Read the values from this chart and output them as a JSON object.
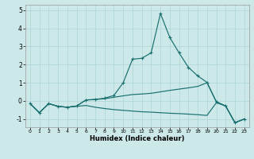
{
  "xlabel": "Humidex (Indice chaleur)",
  "bg_color": "#cce8e8",
  "line_color": "#1a7070",
  "grid_color": "#aad4d4",
  "xlim": [
    -0.5,
    23.5
  ],
  "ylim": [
    -1.45,
    5.3
  ],
  "xticks": [
    0,
    1,
    2,
    3,
    4,
    5,
    6,
    7,
    8,
    9,
    10,
    11,
    12,
    13,
    14,
    15,
    16,
    17,
    18,
    19,
    20,
    21,
    22,
    23
  ],
  "yticks": [
    -1,
    0,
    1,
    2,
    3,
    4,
    5
  ],
  "series": [
    {
      "x": [
        0,
        1,
        2,
        3,
        4,
        5,
        6,
        7,
        8,
        9,
        10,
        11,
        12,
        13,
        14,
        15,
        16,
        17,
        18,
        19,
        20,
        21,
        22,
        23
      ],
      "y": [
        -0.15,
        -0.65,
        -0.15,
        -0.3,
        -0.35,
        -0.3,
        -0.25,
        -0.35,
        -0.42,
        -0.48,
        -0.52,
        -0.56,
        -0.6,
        -0.62,
        -0.65,
        -0.68,
        -0.7,
        -0.73,
        -0.76,
        -0.8,
        -0.1,
        -0.28,
        -1.2,
        -1.0
      ],
      "marker": false,
      "lw": 0.85
    },
    {
      "x": [
        0,
        1,
        2,
        3,
        4,
        5,
        6,
        7,
        8,
        9,
        10,
        11,
        12,
        13,
        14,
        15,
        16,
        17,
        18,
        19,
        20,
        21,
        22,
        23
      ],
      "y": [
        -0.15,
        -0.65,
        -0.15,
        -0.3,
        -0.35,
        -0.28,
        0.05,
        0.08,
        0.12,
        0.2,
        0.28,
        0.35,
        0.38,
        0.42,
        0.5,
        0.58,
        0.65,
        0.72,
        0.8,
        1.0,
        -0.05,
        -0.28,
        -1.2,
        -1.0
      ],
      "marker": false,
      "lw": 0.85
    },
    {
      "x": [
        0,
        1,
        2,
        3,
        4,
        5,
        6,
        7,
        8,
        9,
        10,
        11,
        12,
        13,
        14,
        15,
        16,
        17,
        18,
        19,
        20,
        21,
        22,
        23
      ],
      "y": [
        -0.15,
        -0.65,
        -0.15,
        -0.3,
        -0.35,
        -0.28,
        0.05,
        0.08,
        0.15,
        0.3,
        1.0,
        2.3,
        2.35,
        2.65,
        4.82,
        3.5,
        2.65,
        1.85,
        1.38,
        1.02,
        -0.05,
        -0.28,
        -1.2,
        -1.0
      ],
      "marker": true,
      "lw": 0.85
    }
  ]
}
